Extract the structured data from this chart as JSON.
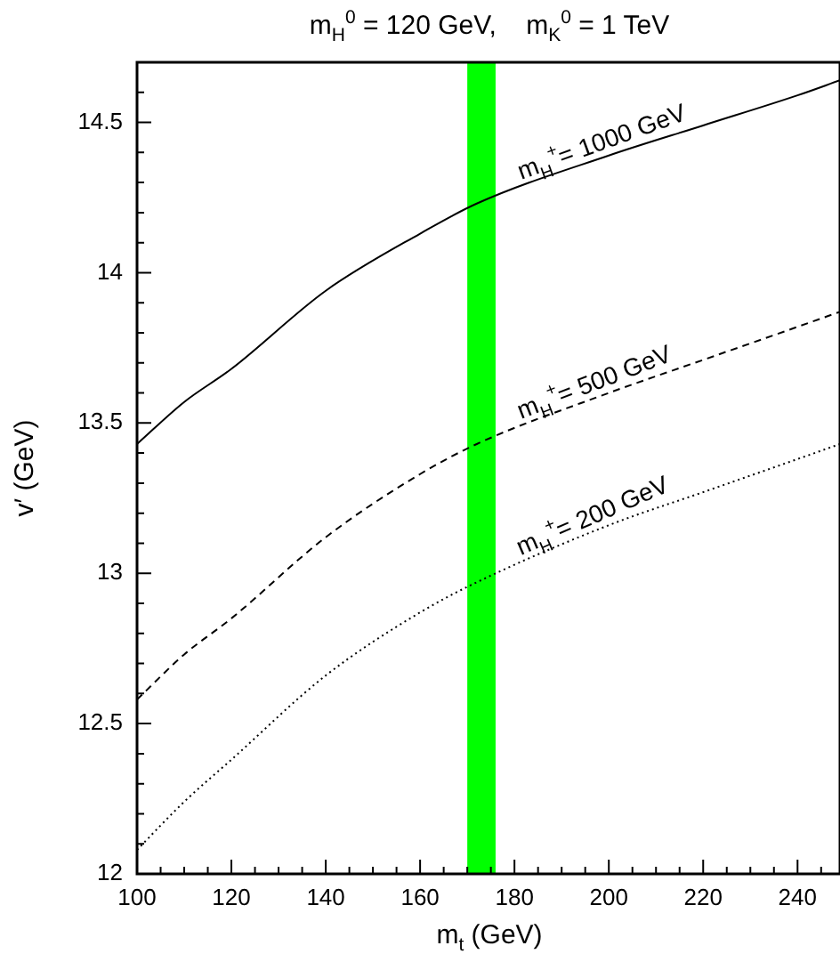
{
  "chart_data": {
    "type": "line",
    "title": "m$_{H}$$^{0}$ = 120 GeV,    m$_{K}$$^{0}$ = 1 TeV",
    "xlabel": "m$_{t}$ (GeV)",
    "ylabel": "v′ (GeV)",
    "x": [
      100,
      110,
      120,
      140,
      160,
      172,
      200,
      220,
      240,
      249
    ],
    "series": [
      {
        "name": "m$_{H}$$^{+}$ = 1000 GeV",
        "color": "#000000",
        "line_style": "solid",
        "values": [
          13.43,
          13.57,
          13.68,
          13.94,
          14.13,
          14.23,
          14.39,
          14.49,
          14.59,
          14.64
        ]
      },
      {
        "name": "m$_{H}$$^{+}$ = 500 GeV",
        "color": "#000000",
        "line_style": "dashed",
        "values": [
          12.58,
          12.73,
          12.85,
          13.12,
          13.33,
          13.43,
          13.6,
          13.71,
          13.82,
          13.87
        ]
      },
      {
        "name": "m$_{H}$$^{+}$ = 200 GeV",
        "color": "#000000",
        "line_style": "dotted",
        "values": [
          12.08,
          12.24,
          12.38,
          12.66,
          12.87,
          12.97,
          13.16,
          13.27,
          13.38,
          13.43
        ]
      }
    ],
    "bands": [
      {
        "axis": "x",
        "from": 170,
        "to": 176,
        "color": "#00ff00"
      }
    ],
    "xlim": [
      100,
      249
    ],
    "ylim": [
      12,
      14.7
    ],
    "xticks": [
      100,
      {
        "value": 105,
        "label": null
      },
      {
        "value": 110,
        "label": null
      },
      {
        "value": 115,
        "label": null
      },
      120,
      {
        "value": 125,
        "label": null
      },
      {
        "value": 130,
        "label": null
      },
      {
        "value": 135,
        "label": null
      },
      140,
      {
        "value": 145,
        "label": null
      },
      {
        "value": 150,
        "label": null
      },
      {
        "value": 155,
        "label": null
      },
      160,
      {
        "value": 165,
        "label": null
      },
      {
        "value": 170,
        "label": null
      },
      {
        "value": 175,
        "label": null
      },
      180,
      {
        "value": 185,
        "label": null
      },
      {
        "value": 190,
        "label": null
      },
      {
        "value": 195,
        "label": null
      },
      200,
      {
        "value": 205,
        "label": null
      },
      {
        "value": 210,
        "label": null
      },
      {
        "value": 215,
        "label": null
      },
      220,
      {
        "value": 225,
        "label": null
      },
      {
        "value": 230,
        "label": null
      },
      {
        "value": 235,
        "label": null
      },
      240,
      {
        "value": 245,
        "label": null
      }
    ],
    "yticks": [
      12,
      {
        "value": 12.1,
        "label": null
      },
      {
        "value": 12.2,
        "label": null
      },
      {
        "value": 12.3,
        "label": null
      },
      {
        "value": 12.4,
        "label": null
      },
      12.5,
      {
        "value": 12.6,
        "label": null
      },
      {
        "value": 12.7,
        "label": null
      },
      {
        "value": 12.8,
        "label": null
      },
      {
        "value": 12.9,
        "label": null
      },
      13,
      {
        "value": 13.1,
        "label": null
      },
      {
        "value": 13.2,
        "label": null
      },
      {
        "value": 13.3,
        "label": null
      },
      {
        "value": 13.4,
        "label": null
      },
      13.5,
      {
        "value": 13.6,
        "label": null
      },
      {
        "value": 13.7,
        "label": null
      },
      {
        "value": 13.8,
        "label": null
      },
      {
        "value": 13.9,
        "label": null
      },
      14,
      {
        "value": 14.1,
        "label": null
      },
      {
        "value": 14.2,
        "label": null
      },
      {
        "value": 14.3,
        "label": null
      },
      {
        "value": 14.4,
        "label": null
      },
      14.5,
      {
        "value": 14.6,
        "label": null
      }
    ],
    "marker": "none"
  }
}
